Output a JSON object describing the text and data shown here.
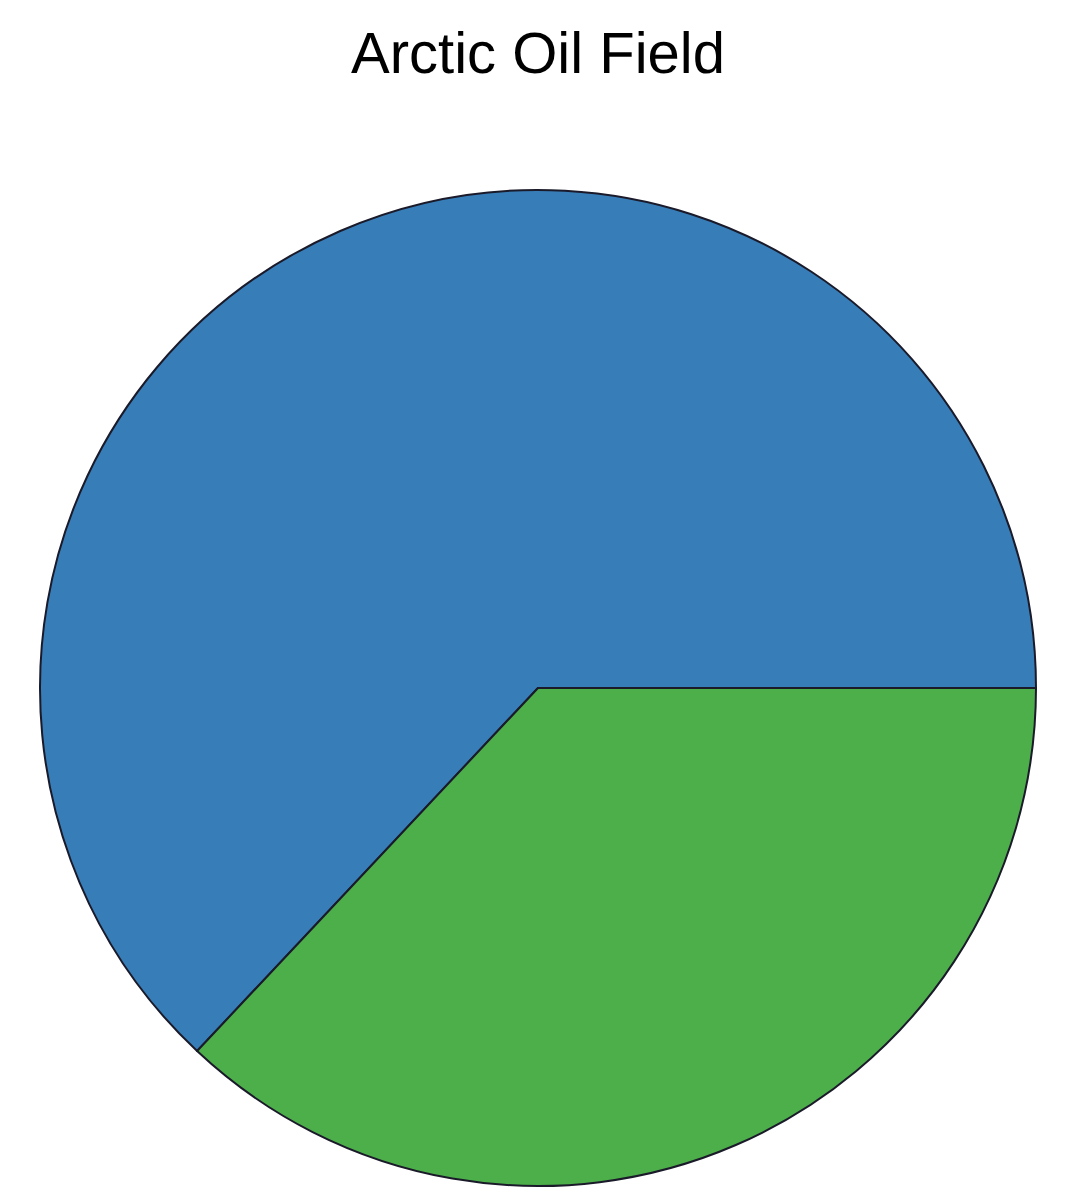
{
  "chart_data": {
    "type": "pie",
    "title": "Arctic Oil Field",
    "categories": [
      null,
      null
    ],
    "values": [
      63,
      37
    ],
    "colors": [
      "#377eb8",
      "#4daf4a"
    ]
  }
}
